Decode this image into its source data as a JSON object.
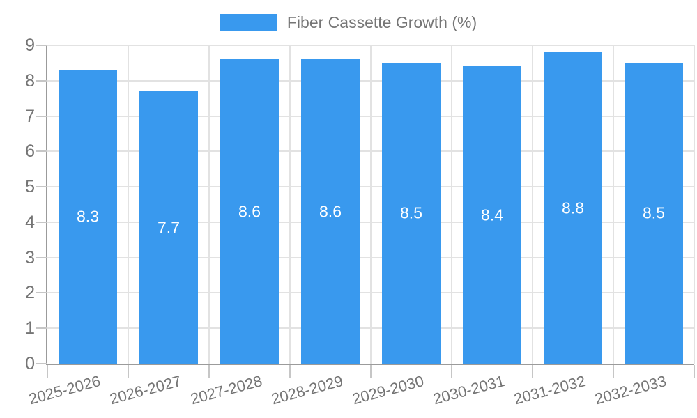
{
  "chart_data": {
    "type": "bar",
    "title": "Fiber Cassette Growth (%)",
    "categories": [
      "2025-2026",
      "2026-2027",
      "2027-2028",
      "2028-2029",
      "2029-2030",
      "2030-2031",
      "2031-2032",
      "2032-2033"
    ],
    "values": [
      8.3,
      7.7,
      8.6,
      8.6,
      8.5,
      8.4,
      8.8,
      8.5
    ],
    "bar_value_labels": [
      "8.3",
      "7.7",
      "8.6",
      "8.6",
      "8.5",
      "8.4",
      "8.8",
      "8.5"
    ],
    "xlabel": "",
    "ylabel": "",
    "ylim": [
      0,
      9
    ],
    "yticks": [
      0,
      1,
      2,
      3,
      4,
      5,
      6,
      7,
      8,
      9
    ],
    "grid": true,
    "legend_position": "top",
    "colors": {
      "bar": "#3999ee",
      "bar_label": "#ffffff",
      "axis_line": "#9b9b9b",
      "grid_line": "#e2e2e2",
      "tick_line": "#c6c6c6",
      "text": "#757575"
    }
  }
}
